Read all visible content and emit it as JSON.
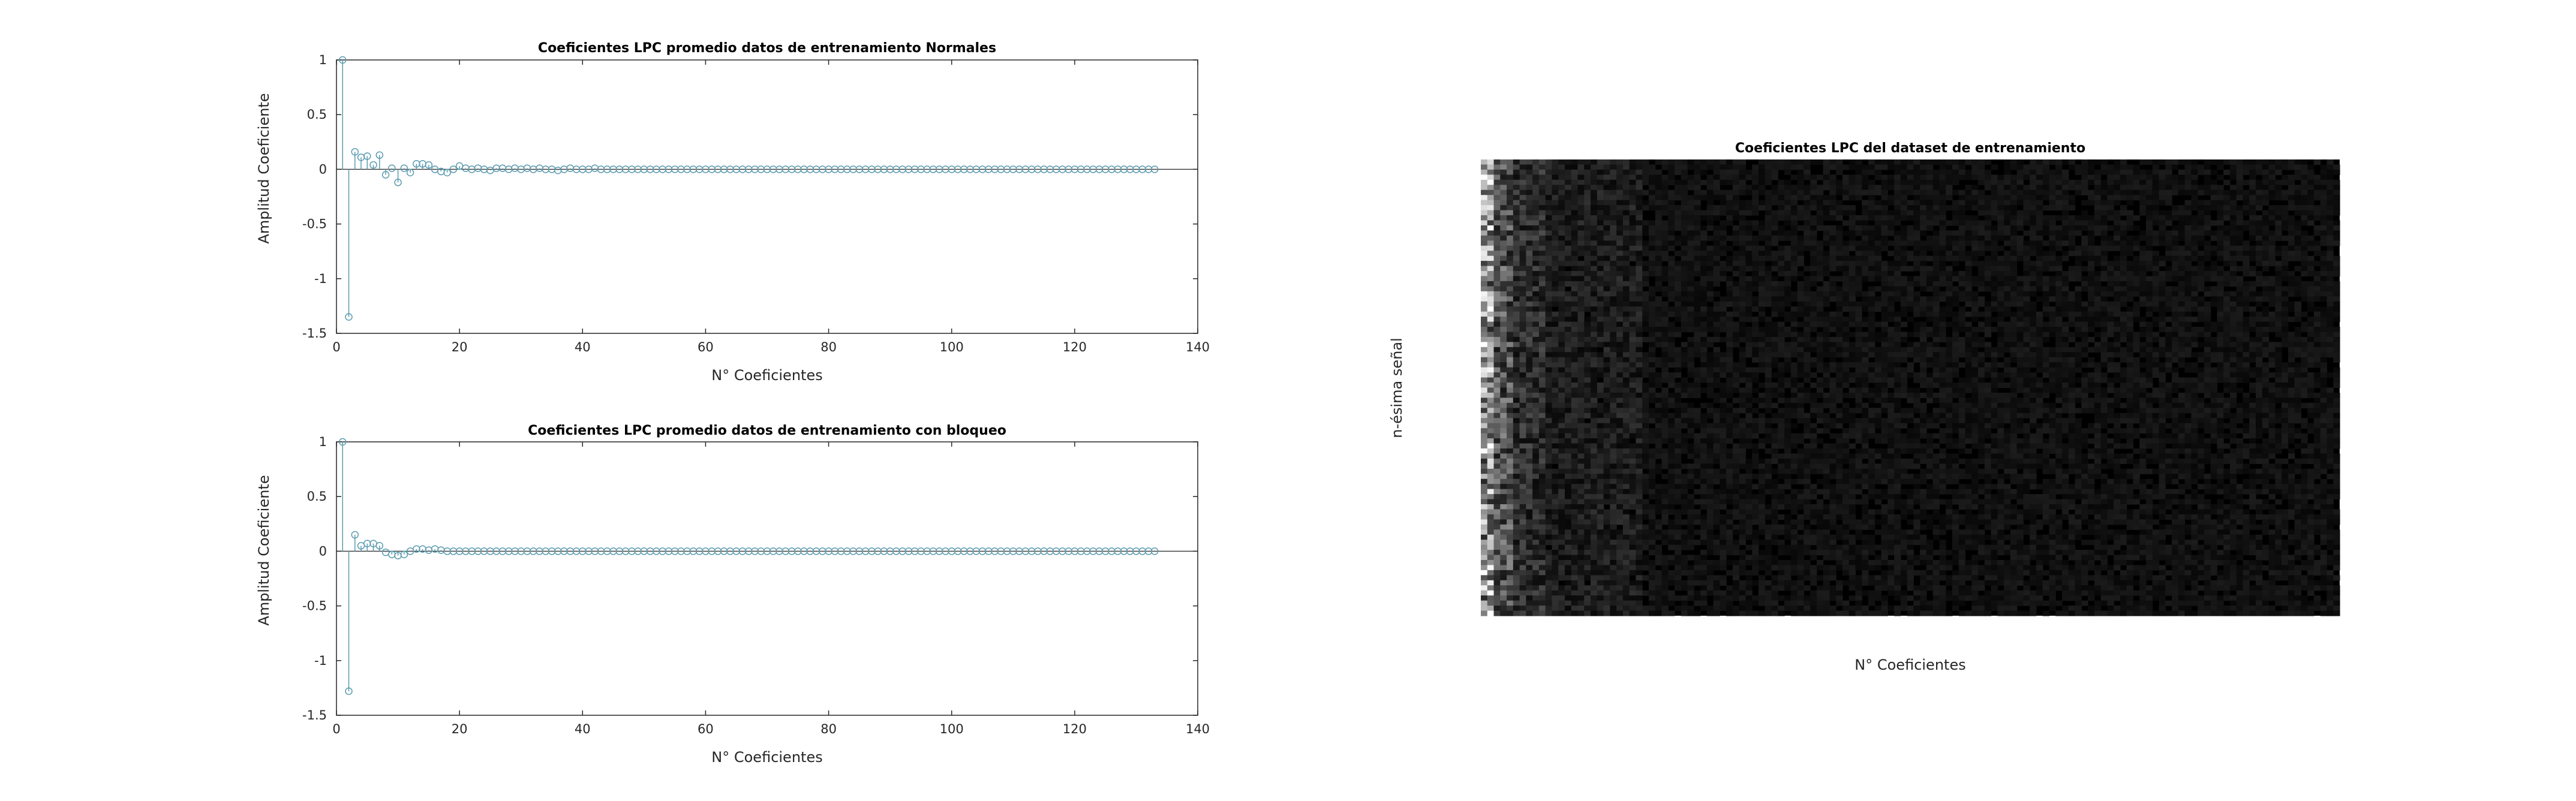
{
  "chart_data": [
    {
      "type": "stem",
      "title": "Coeficientes LPC promedio datos de entrenamiento Normales",
      "xlabel": "N° Coeficientes",
      "ylabel": "Amplitud Coeficiente",
      "xlim": [
        0,
        140
      ],
      "ylim": [
        -1.5,
        1
      ],
      "xticks": [
        "0",
        "20",
        "40",
        "60",
        "80",
        "100",
        "120",
        "140"
      ],
      "yticks": [
        "1",
        "0.5",
        "0",
        "-0.5",
        "-1",
        "-1.5"
      ],
      "grid": false,
      "color": "#5b9bb0",
      "x_start": 1,
      "values": [
        1.0,
        -1.35,
        0.16,
        0.11,
        0.12,
        0.04,
        0.13,
        -0.05,
        0.01,
        -0.12,
        0.01,
        -0.03,
        0.05,
        0.05,
        0.04,
        0.0,
        -0.02,
        -0.03,
        0.0,
        0.03,
        0.01,
        0.0,
        0.01,
        0.0,
        -0.01,
        0.01,
        0.01,
        0.0,
        0.01,
        0.0,
        0.01,
        0.0,
        0.01,
        0.0,
        0.0,
        -0.01,
        0.0,
        0.01,
        0.0,
        0.0,
        0.0,
        0.01,
        0.0,
        0.0,
        0.0,
        0.0,
        0.0,
        0.0,
        0.0,
        0.0,
        0.0,
        0.0,
        0.0,
        0.0,
        0.0,
        0.0,
        0.0,
        0.0,
        0.0,
        0.0,
        0.0,
        0.0,
        0.0,
        0.0,
        0.0,
        0.0,
        0.0,
        0.0,
        0.0,
        0.0,
        0.0,
        0.0,
        0.0,
        0.0,
        0.0,
        0.0,
        0.0,
        0.0,
        0.0,
        0.0,
        0.0,
        0.0,
        0.0,
        0.0,
        0.0,
        0.0,
        0.0,
        0.0,
        0.0,
        0.0,
        0.0,
        0.0,
        0.0,
        0.0,
        0.0,
        0.0,
        0.0,
        0.0,
        0.0,
        0.0,
        0.0,
        0.0,
        0.0,
        0.0,
        0.0,
        0.0,
        0.0,
        0.0,
        0.0,
        0.0,
        0.0,
        0.0,
        0.0,
        0.0,
        0.0,
        0.0,
        0.0,
        0.0,
        0.0,
        0.0,
        0.0,
        0.0,
        0.0,
        0.0,
        0.0,
        0.0,
        0.0,
        0.0,
        0.0,
        0.0,
        0.0,
        0.0,
        0.0
      ]
    },
    {
      "type": "stem",
      "title": "Coeficientes LPC promedio datos de entrenamiento con bloqueo",
      "xlabel": "N° Coeficientes",
      "ylabel": "Amplitud Coeficiente",
      "xlim": [
        0,
        140
      ],
      "ylim": [
        -1.5,
        1
      ],
      "xticks": [
        "0",
        "20",
        "40",
        "60",
        "80",
        "100",
        "120",
        "140"
      ],
      "yticks": [
        "1",
        "0.5",
        "0",
        "-0.5",
        "-1",
        "-1.5"
      ],
      "grid": false,
      "color": "#5b9bb0",
      "x_start": 1,
      "values": [
        1.0,
        -1.28,
        0.15,
        0.05,
        0.07,
        0.07,
        0.05,
        -0.01,
        -0.03,
        -0.04,
        -0.03,
        0.0,
        0.02,
        0.02,
        0.01,
        0.02,
        0.01,
        0.0,
        0.0,
        0.0,
        0.0,
        0.0,
        0.0,
        0.0,
        0.0,
        0.0,
        0.0,
        0.0,
        0.0,
        0.0,
        0.0,
        0.0,
        0.0,
        0.0,
        0.0,
        0.0,
        0.0,
        0.0,
        0.0,
        0.0,
        0.0,
        0.0,
        0.0,
        0.0,
        0.0,
        0.0,
        0.0,
        0.0,
        0.0,
        0.0,
        0.0,
        0.0,
        0.0,
        0.0,
        0.0,
        0.0,
        0.0,
        0.0,
        0.0,
        0.0,
        0.0,
        0.0,
        0.0,
        0.0,
        0.0,
        0.0,
        0.0,
        0.0,
        0.0,
        0.0,
        0.0,
        0.0,
        0.0,
        0.0,
        0.0,
        0.0,
        0.0,
        0.0,
        0.0,
        0.0,
        0.0,
        0.0,
        0.0,
        0.0,
        0.0,
        0.0,
        0.0,
        0.0,
        0.0,
        0.0,
        0.0,
        0.0,
        0.0,
        0.0,
        0.0,
        0.0,
        0.0,
        0.0,
        0.0,
        0.0,
        0.0,
        0.0,
        0.0,
        0.0,
        0.0,
        0.0,
        0.0,
        0.0,
        0.0,
        0.0,
        0.0,
        0.0,
        0.0,
        0.0,
        0.0,
        0.0,
        0.0,
        0.0,
        0.0,
        0.0,
        0.0,
        0.0,
        0.0,
        0.0,
        0.0,
        0.0,
        0.0,
        0.0,
        0.0,
        0.0,
        0.0,
        0.0,
        0.0
      ]
    },
    {
      "type": "heatmap",
      "title": "Coeficientes LPC del dataset de entrenamiento",
      "xlabel": "N° Coeficientes",
      "ylabel": "n-ésima señal",
      "colormap": "gray",
      "n_columns": 133,
      "n_rows": 90,
      "background": "#000000"
    }
  ]
}
